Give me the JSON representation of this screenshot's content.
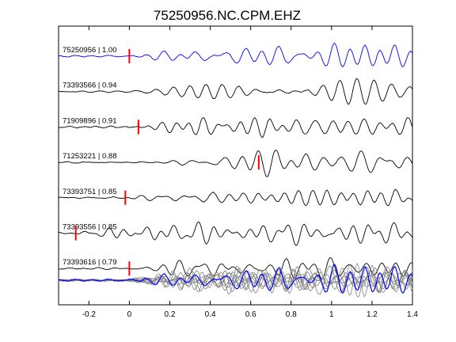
{
  "chart_data": {
    "type": "line",
    "title": "75250956.NC.CPM.EHZ",
    "xlim": [
      -0.35,
      1.4
    ],
    "x_ticks": [
      -0.2,
      0,
      0.2,
      0.4,
      0.6,
      0.8,
      1,
      1.2,
      1.4
    ],
    "x_tick_labels": [
      "-0.2",
      "0",
      "0.2",
      "0.4",
      "0.6",
      "0.8",
      "1",
      "1.2",
      "1.4"
    ],
    "grid": false,
    "colors": {
      "master_trace": "#0000ff",
      "trace": "#000000",
      "pick": "#ff0000",
      "stack_trace": "#808080",
      "axes": "#000000"
    },
    "traces": [
      {
        "label": "75250956 | 1.00",
        "pick": 0.0,
        "color": "#0000ff",
        "seed": 1
      },
      {
        "label": "73393566 | 0.94",
        "pick": null,
        "color": "#000000",
        "seed": 2
      },
      {
        "label": "71909896 | 0.91",
        "pick": 0.045,
        "color": "#000000",
        "seed": 3
      },
      {
        "label": "71253221 | 0.88",
        "pick": 0.64,
        "color": "#000000",
        "seed": 4
      },
      {
        "label": "73393751 | 0.85",
        "pick": -0.02,
        "color": "#000000",
        "seed": 5
      },
      {
        "label": "73393556 | 0.85",
        "pick": -0.265,
        "color": "#000000",
        "seed": 6
      },
      {
        "label": "73393616 | 0.79",
        "pick": 0.0,
        "color": "#000000",
        "seed": 7
      }
    ],
    "stack": {
      "overlay_count": 8
    }
  }
}
